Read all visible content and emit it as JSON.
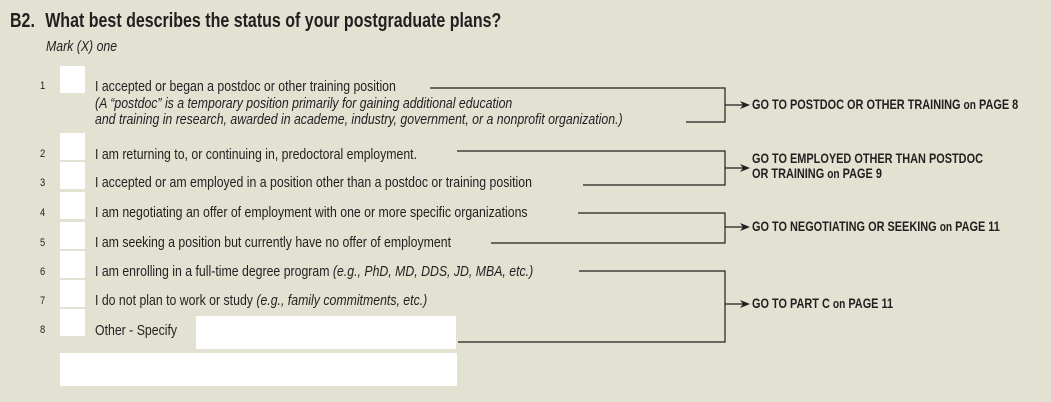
{
  "question": {
    "number": "B2.",
    "text": "What best describes the status of your postgraduate plans?",
    "instruction": "Mark (X) one"
  },
  "options": [
    {
      "num": "1",
      "text": "I accepted or began a postdoc or other training position",
      "note_line1": "(A “postdoc” is a temporary position primarily for gaining additional education",
      "note_line2": "and training in research, awarded in academe, industry, government, or a nonprofit organization.)",
      "checked": false
    },
    {
      "num": "2",
      "text": "I am returning to, or continuing in, predoctoral employment.",
      "checked": false
    },
    {
      "num": "3",
      "text": "I accepted or am employed in a position other than a postdoc or training position",
      "checked": false
    },
    {
      "num": "4",
      "text": "I am negotiating an offer of employment with one or more specific organizations",
      "checked": false
    },
    {
      "num": "5",
      "text": "I am seeking a position but currently have no offer of employment",
      "checked": false
    },
    {
      "num": "6",
      "text": "I am enrolling in a full-time degree program",
      "note": "(e.g., PhD, MD, DDS, JD, MBA, etc.)",
      "checked": false
    },
    {
      "num": "7",
      "text": "I do not plan to work or study",
      "note": "(e.g., family commitments, etc.)",
      "checked": false
    },
    {
      "num": "8",
      "text": "Other - Specify",
      "checked": false,
      "specify_value": "",
      "specify_value_2": ""
    }
  ],
  "skips": [
    {
      "lead": "GO TO POSTDOC OR OTHER TRAINING",
      "on": "on",
      "page": "PAGE 8"
    },
    {
      "lead": "GO TO EMPLOYED OTHER THAN POSTDOC",
      "lead2": "OR TRAINING",
      "on": "on",
      "page": "PAGE 9"
    },
    {
      "lead": "GO TO NEGOTIATING OR SEEKING",
      "on": "on",
      "page": "PAGE 11"
    },
    {
      "lead": "GO TO PART C",
      "on": "on",
      "page": "PAGE 11"
    }
  ]
}
